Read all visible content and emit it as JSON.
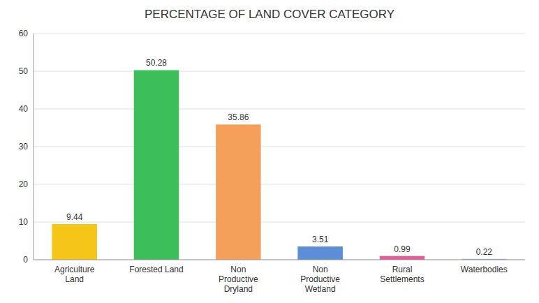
{
  "chart_data": {
    "type": "bar",
    "title": "PERCENTAGE OF LAND COVER CATEGORY",
    "categories": [
      "Agriculture\nLand",
      "Forested Land",
      "Non\nProductive\nDryland",
      "Non\nProductive\nWetland",
      "Rural\nSettlements",
      "Waterbodies"
    ],
    "values": [
      9.44,
      50.28,
      35.86,
      3.51,
      0.99,
      0.22
    ],
    "colors": [
      "#F5C518",
      "#3CBF5A",
      "#F5A05A",
      "#5B8ED6",
      "#E05C9A",
      "#8BADD4"
    ],
    "ylim": [
      0,
      60
    ],
    "yticks": [
      0,
      10,
      20,
      30,
      40,
      50,
      60
    ],
    "grid": true,
    "data_labels": true
  }
}
